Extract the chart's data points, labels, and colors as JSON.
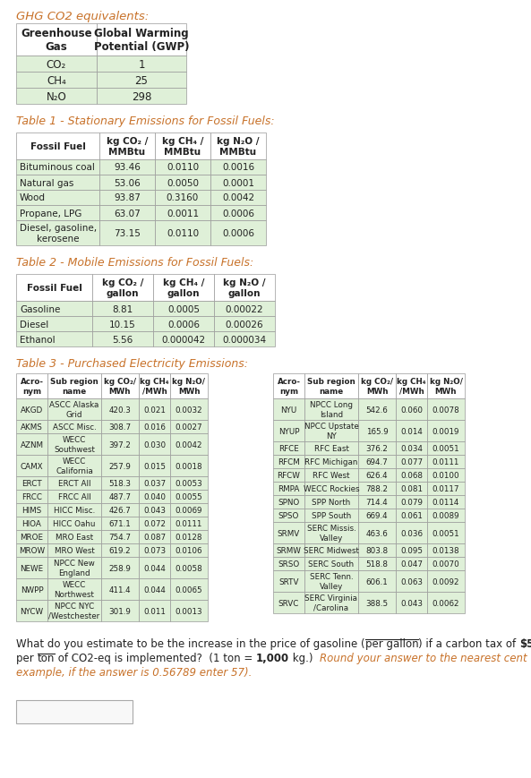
{
  "title_ghg": "GHG CO2 equivalents:",
  "title1": "Table 1 - Stationary Emissions for Fossil Fuels:",
  "title2": "Table 2 - Mobile Emissions for Fossil Fuels:",
  "title3": "Table 3 - Purchased Electricity Emissions:",
  "ghg_headers": [
    "Greenhouse\nGas",
    "Global Warming\nPotential (GWP)"
  ],
  "ghg_data": [
    [
      "CO₂",
      "1"
    ],
    [
      "CH₄",
      "25"
    ],
    [
      "N₂O",
      "298"
    ]
  ],
  "t1_headers": [
    "Fossil Fuel",
    "kg CO₂ /\nMMBtu",
    "kg CH₄ /\nMMBtu",
    "kg N₂O /\nMMBtu"
  ],
  "t1_data": [
    [
      "Bituminous coal",
      "93.46",
      "0.0110",
      "0.0016"
    ],
    [
      "Natural gas",
      "53.06",
      "0.0050",
      "0.0001"
    ],
    [
      "Wood",
      "93.87",
      "0.3160",
      "0.0042"
    ],
    [
      "Propane, LPG",
      "63.07",
      "0.0011",
      "0.0006"
    ],
    [
      "Diesel, gasoline,\nkerosene",
      "73.15",
      "0.0110",
      "0.0006"
    ]
  ],
  "t2_headers": [
    "Fossil Fuel",
    "kg CO₂ /\ngallon",
    "kg CH₄ /\ngallon",
    "kg N₂O /\ngallon"
  ],
  "t2_data": [
    [
      "Gasoline",
      "8.81",
      "0.0005",
      "0.00022"
    ],
    [
      "Diesel",
      "10.15",
      "0.0006",
      "0.00026"
    ],
    [
      "Ethanol",
      "5.56",
      "0.000042",
      "0.000034"
    ]
  ],
  "t3_headers": [
    "Acro-\nnym",
    "Sub region\nname",
    "kg CO₂/\nMWh",
    "kg CH₄\n/MWh",
    "kg N₂O/\nMWh"
  ],
  "t3_left": [
    [
      "AKGD",
      "ASCC Alaska\nGrid",
      "420.3",
      "0.021",
      "0.0032"
    ],
    [
      "AKMS",
      "ASCC Misc.",
      "308.7",
      "0.016",
      "0.0027"
    ],
    [
      "AZNM",
      "WECC\nSouthwest",
      "397.2",
      "0.030",
      "0.0042"
    ],
    [
      "CAMX",
      "WECC\nCalifornia",
      "257.9",
      "0.015",
      "0.0018"
    ],
    [
      "ERCT",
      "ERCT All",
      "518.3",
      "0.037",
      "0.0053"
    ],
    [
      "FRCC",
      "FRCC All",
      "487.7",
      "0.040",
      "0.0055"
    ],
    [
      "HIMS",
      "HICC Misc.",
      "426.7",
      "0.043",
      "0.0069"
    ],
    [
      "HIOA",
      "HICC Oahu",
      "671.1",
      "0.072",
      "0.0111"
    ],
    [
      "MROE",
      "MRO East",
      "754.7",
      "0.087",
      "0.0128"
    ],
    [
      "MROW",
      "MRO West",
      "619.2",
      "0.073",
      "0.0106"
    ],
    [
      "NEWE",
      "NPCC New\nEngland",
      "258.9",
      "0.044",
      "0.0058"
    ],
    [
      "NWPP",
      "WECC\nNorthwest",
      "411.4",
      "0.044",
      "0.0065"
    ],
    [
      "NYCW",
      "NPCC NYC\n/Westchester",
      "301.9",
      "0.011",
      "0.0013"
    ]
  ],
  "t3_right": [
    [
      "NYU",
      "NPCC Long\nIsland",
      "542.6",
      "0.060",
      "0.0078"
    ],
    [
      "NYUP",
      "NPCC Upstate\nNY",
      "165.9",
      "0.014",
      "0.0019"
    ],
    [
      "RFCE",
      "RFC East",
      "376.2",
      "0.034",
      "0.0051"
    ],
    [
      "RFCM",
      "RFC Michigan",
      "694.7",
      "0.077",
      "0.0111"
    ],
    [
      "RFCW",
      "RFC West",
      "626.4",
      "0.068",
      "0.0100"
    ],
    [
      "RMPA",
      "WECC Rockies",
      "788.2",
      "0.081",
      "0.0117"
    ],
    [
      "SPNO",
      "SPP North",
      "714.4",
      "0.079",
      "0.0114"
    ],
    [
      "SPSO",
      "SPP South",
      "669.4",
      "0.061",
      "0.0089"
    ],
    [
      "SRMV",
      "SERC Missis.\nValley",
      "463.6",
      "0.036",
      "0.0051"
    ],
    [
      "SRMW",
      "SERC Midwest",
      "803.8",
      "0.095",
      "0.0138"
    ],
    [
      "SRSO",
      "SERC South",
      "518.8",
      "0.047",
      "0.0070"
    ],
    [
      "SRTV",
      "SERC Tenn.\nValley",
      "606.1",
      "0.063",
      "0.0092"
    ],
    [
      "SRVC",
      "SERC Virginia\n/Carolina",
      "388.5",
      "0.043",
      "0.0062"
    ]
  ],
  "bg_color": "#ffffff",
  "header_bg": "#ffffff",
  "row_bg_light": "#dff0d8",
  "border_color": "#999999",
  "title_color": "#c8722a",
  "text_color": "#222222"
}
